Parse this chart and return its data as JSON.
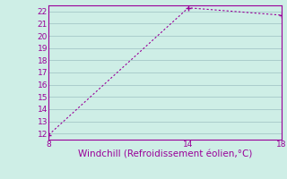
{
  "x": [
    8,
    14,
    18
  ],
  "y": [
    11.9,
    22.3,
    21.7
  ],
  "xlim": [
    8,
    18
  ],
  "ylim": [
    11.5,
    22.5
  ],
  "xticks": [
    8,
    14,
    18
  ],
  "yticks": [
    12,
    13,
    14,
    15,
    16,
    17,
    18,
    19,
    20,
    21,
    22
  ],
  "xlabel": "Windchill (Refroidissement éolien,°C)",
  "line_color": "#990099",
  "marker": "+",
  "background_color": "#ceeee6",
  "grid_color": "#aacccc",
  "tick_color": "#990099",
  "label_color": "#990099",
  "font_size": 6.5,
  "xlabel_fontsize": 7.5
}
